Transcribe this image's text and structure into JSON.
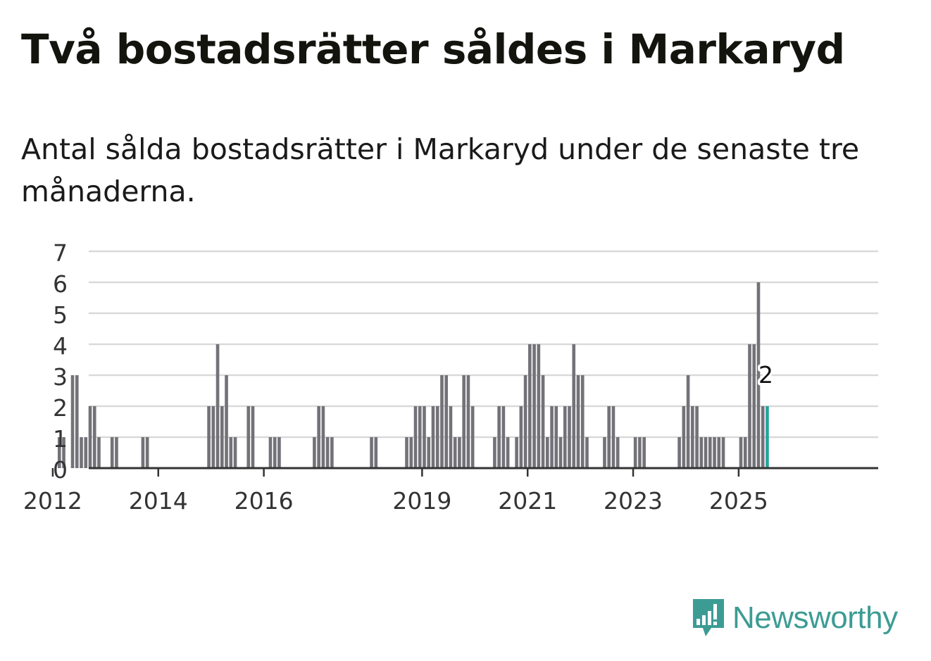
{
  "title": "Två bostadsrätter såldes i Markaryd",
  "subtitle": "Antal sålda bostadsrätter i Markaryd under de senaste tre månaderna.",
  "logo": {
    "name": "Newsworthy",
    "icon": "newsworthy-logo-icon",
    "color": "#3c9c94"
  },
  "colors": {
    "bar": "#737278",
    "highlight": "#24a39b",
    "grid": "#d9d9d9",
    "axis": "#333333"
  },
  "chart_data": {
    "type": "bar",
    "x_start": "2011-01",
    "interval": "month",
    "ylim": [
      0,
      7
    ],
    "yticks": [
      0,
      1,
      2,
      3,
      4,
      5,
      6,
      7
    ],
    "xticks": [
      {
        "label": "2012",
        "month_index": 12
      },
      {
        "label": "2014",
        "month_index": 36
      },
      {
        "label": "2016",
        "month_index": 60
      },
      {
        "label": "2019",
        "month_index": 96
      },
      {
        "label": "2021",
        "month_index": 120
      },
      {
        "label": "2023",
        "month_index": 144
      },
      {
        "label": "2025",
        "month_index": 168
      }
    ],
    "values": [
      0,
      0,
      0,
      0,
      0,
      0,
      0,
      0,
      0,
      0,
      0,
      0,
      0,
      1,
      1,
      0,
      3,
      3,
      1,
      1,
      2,
      2,
      1,
      0,
      0,
      1,
      1,
      0,
      0,
      0,
      0,
      0,
      1,
      1,
      0,
      0,
      0,
      0,
      0,
      0,
      0,
      0,
      0,
      0,
      0,
      0,
      0,
      2,
      2,
      4,
      2,
      3,
      1,
      1,
      0,
      0,
      2,
      2,
      0,
      0,
      0,
      1,
      1,
      1,
      0,
      0,
      0,
      0,
      0,
      0,
      0,
      1,
      2,
      2,
      1,
      1,
      0,
      0,
      0,
      0,
      0,
      0,
      0,
      0,
      1,
      1,
      0,
      0,
      0,
      0,
      0,
      0,
      1,
      1,
      2,
      2,
      2,
      1,
      2,
      2,
      3,
      3,
      2,
      1,
      1,
      3,
      3,
      2,
      0,
      0,
      0,
      0,
      1,
      2,
      2,
      1,
      0,
      1,
      2,
      3,
      4,
      4,
      4,
      3,
      1,
      2,
      2,
      1,
      2,
      2,
      4,
      3,
      3,
      1,
      0,
      0,
      0,
      1,
      2,
      2,
      1,
      0,
      0,
      0,
      1,
      1,
      1,
      0,
      0,
      0,
      0,
      0,
      0,
      0,
      1,
      2,
      3,
      2,
      2,
      1,
      1,
      1,
      1,
      1,
      1,
      0,
      0,
      0,
      1,
      1,
      4,
      4,
      6,
      2,
      2
    ],
    "highlight_index": 174,
    "data_label": {
      "index": 174,
      "text": "2"
    }
  }
}
